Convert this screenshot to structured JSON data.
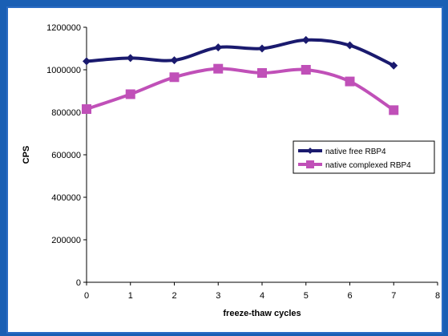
{
  "chart_data": {
    "type": "line",
    "title": "",
    "xlabel": "freeze-thaw cycles",
    "ylabel": "CPS",
    "xlim": [
      0,
      8
    ],
    "ylim": [
      0,
      1200000
    ],
    "xticks": [
      0,
      1,
      2,
      3,
      4,
      5,
      6,
      7,
      8
    ],
    "yticks": [
      0,
      200000,
      400000,
      600000,
      800000,
      1000000,
      1200000
    ],
    "x": [
      0,
      1,
      2,
      3,
      4,
      5,
      6,
      7
    ],
    "series": [
      {
        "name": "native free RBP4",
        "color": "#1a1a6e",
        "marker": "diamond",
        "values": [
          1040000,
          1055000,
          1045000,
          1105000,
          1100000,
          1140000,
          1115000,
          1020000
        ]
      },
      {
        "name": "native complexed RBP4",
        "color": "#c050b8",
        "marker": "square",
        "values": [
          815000,
          885000,
          965000,
          1005000,
          985000,
          1000000,
          945000,
          810000
        ]
      }
    ],
    "legend": "right",
    "grid": false
  }
}
